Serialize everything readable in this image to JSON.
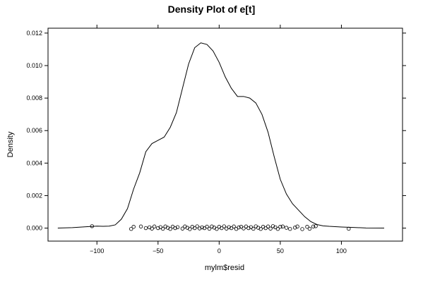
{
  "chart_data": {
    "type": "line",
    "title": "Density Plot of e[t]",
    "xlabel": "mylm$resid",
    "ylabel": "Density",
    "xlim": [
      -140,
      150
    ],
    "ylim": [
      -0.0008,
      0.0123
    ],
    "x_ticks": [
      -100,
      -50,
      0,
      50,
      100
    ],
    "x_tick_labels": [
      "−100",
      "−50",
      "0",
      "50",
      "100"
    ],
    "y_ticks": [
      0.0,
      0.002,
      0.004,
      0.006,
      0.008,
      0.01,
      0.012
    ],
    "y_tick_labels": [
      "0.000",
      "0.002",
      "0.004",
      "0.006",
      "0.008",
      "0.010",
      "0.012"
    ],
    "grid": false,
    "series": [
      {
        "kind": "density",
        "x": [
          -132,
          -120,
          -110,
          -100,
          -95,
          -90,
          -85,
          -80,
          -75,
          -70,
          -65,
          -60,
          -55,
          -50,
          -45,
          -40,
          -35,
          -30,
          -25,
          -20,
          -15,
          -10,
          -5,
          0,
          5,
          10,
          15,
          20,
          25,
          30,
          35,
          40,
          45,
          50,
          55,
          60,
          65,
          70,
          75,
          80,
          85,
          90,
          95,
          100,
          110,
          120,
          135
        ],
        "y": [
          0.0,
          3e-05,
          8e-05,
          0.00012,
          0.00011,
          0.00012,
          0.0002,
          0.00055,
          0.0012,
          0.0024,
          0.0034,
          0.0047,
          0.0052,
          0.0054,
          0.0056,
          0.0062,
          0.0071,
          0.0086,
          0.0101,
          0.0111,
          0.0114,
          0.0113,
          0.0109,
          0.0102,
          0.0093,
          0.0086,
          0.0081,
          0.0081,
          0.008,
          0.0077,
          0.007,
          0.0059,
          0.0044,
          0.003,
          0.0021,
          0.0015,
          0.0011,
          0.0007,
          0.0004,
          0.00022,
          0.00014,
          0.00011,
          9e-05,
          7e-05,
          4e-05,
          1e-05,
          0.0
        ]
      },
      {
        "kind": "rug",
        "x": [
          -104,
          -72,
          -70,
          -64,
          -60,
          -57,
          -55,
          -53,
          -50,
          -48,
          -46,
          -44,
          -42,
          -40,
          -38,
          -36,
          -34,
          -30,
          -28,
          -26,
          -24,
          -22,
          -20,
          -18,
          -16,
          -14,
          -12,
          -10,
          -8,
          -6,
          -4,
          -2,
          0,
          2,
          4,
          6,
          8,
          10,
          12,
          14,
          16,
          18,
          20,
          22,
          24,
          26,
          28,
          30,
          32,
          34,
          36,
          38,
          40,
          42,
          44,
          46,
          48,
          50,
          52,
          55,
          58,
          62,
          64,
          68,
          72,
          74,
          77,
          79,
          106
        ],
        "y": [
          0.00012,
          -5e-05,
          8e-05,
          0.0001,
          0.0,
          5e-05,
          -3e-05,
          0.0001,
          0.0,
          6e-05,
          -4e-05,
          0.0001,
          2e-05,
          -5e-05,
          9e-05,
          0.0,
          6e-05,
          -3e-05,
          0.0001,
          2e-05,
          -6e-05,
          8e-05,
          0.0,
          0.00011,
          -2e-05,
          5e-05,
          0.0,
          9e-05,
          -4e-05,
          0.0001,
          3e-05,
          -5e-05,
          8e-05,
          0.0,
          0.00011,
          -3e-05,
          6e-05,
          0.0,
          0.0001,
          -5e-05,
          4e-05,
          8e-05,
          -2e-05,
          0.0001,
          0.0,
          6e-05,
          -4e-05,
          0.00011,
          2e-05,
          -5e-05,
          8e-05,
          0.0,
          0.0001,
          -3e-05,
          0.00012,
          5e-05,
          -5e-05,
          8e-05,
          0.0001,
          2e-05,
          -5e-05,
          3e-05,
          0.0001,
          -6e-05,
          8e-05,
          -4e-05,
          0.0001,
          0.00012,
          -4e-05
        ]
      }
    ],
    "colors": {
      "line": "#000000",
      "points": "#000000",
      "frame": "#000000"
    }
  }
}
